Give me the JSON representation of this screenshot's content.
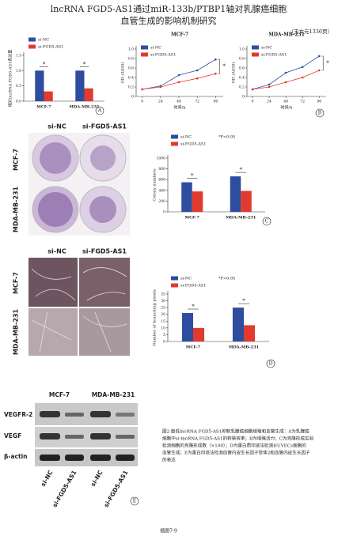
{
  "header": {
    "title_lines": [
      "lncRNA FGD5-AS1通过miR-133b/PTBP1轴对乳腺癌细胞",
      "血管生成的影响机制研究"
    ],
    "author_note": "（王文元1336页）"
  },
  "colony_photos": {
    "columns": [
      "si-NC",
      "si-FGD5-AS1"
    ],
    "rows": [
      "MCF-7",
      "MDA-MB-231"
    ]
  },
  "tube_photos": {
    "columns": [
      "si-NC",
      "si-FGD5-AS1"
    ],
    "rows": [
      "MCF-7",
      "MDA-MB-231"
    ]
  },
  "western_blot": {
    "label": "E",
    "groups": [
      "MCF-7",
      "MDA-MB-231"
    ],
    "bands": [
      "VEGFR-2",
      "VEGF",
      "β-actin"
    ],
    "lanes": [
      "si-NC",
      "si-FGD5-AS1",
      "si-NC",
      "si-FGD5-AS1"
    ]
  },
  "caption": {
    "lines": [
      "图2  敲低lncRNA FGD5-AS1抑制乳腺癌细胞增殖和血管生成：A为乳腺癌",
      "细胞中si-lncRNA FGD5-AS1的转染效率；B为增殖活力；C为克隆形成实验",
      "检测细胞的克隆形成数（×100）；D为蛋白质印迹法检测HUVECs细胞的",
      "血管生成；E为蛋白印迹法检测血管内皮生长因子受体2和血管内皮生长因子",
      "的表达"
    ]
  },
  "footer": "插图7-9",
  "chart_data": [
    {
      "type": "bar",
      "label": "A",
      "ylabel": "相对lncRNA FGD5-AS1表达量",
      "categories": [
        "MCF-7",
        "MDA-MB-231"
      ],
      "series": [
        {
          "name": "si-NC",
          "color": "#2e4d9e",
          "values": [
            1.0,
            1.0
          ]
        },
        {
          "name": "si-FGD5-AS1",
          "color": "#e23a2e",
          "values": [
            0.32,
            0.42
          ]
        }
      ],
      "annotations": [
        "*",
        "*"
      ],
      "ylim": [
        0,
        1.5
      ],
      "yticks": [
        {
          "value": 0,
          "label": "0.0"
        },
        0.5,
        {
          "value": 1,
          "label": "1.0"
        },
        {
          "value": 1.5,
          "label": "1.5"
        }
      ]
    },
    {
      "type": "line",
      "label": "",
      "title": "MCF-7",
      "xlabel": "时间/h",
      "ylabel": "OD (A450)",
      "x": [
        0,
        24,
        48,
        72,
        96
      ],
      "series": [
        {
          "name": "si-NC",
          "color": "#2e4d9e",
          "values": [
            0.15,
            0.22,
            0.45,
            0.55,
            0.78
          ]
        },
        {
          "name": "si-FGD5-AS1",
          "color": "#e23a2e",
          "values": [
            0.15,
            0.2,
            0.3,
            0.38,
            0.48
          ]
        }
      ],
      "annotations": [
        "*"
      ],
      "xlim": [
        -8,
        106
      ],
      "xticks": [
        0,
        24,
        48,
        72,
        96
      ],
      "ylim": [
        0,
        1
      ],
      "yticks": [
        0,
        0.2,
        0.4,
        0.6,
        0.8,
        {
          "value": 1,
          "label": "1.0"
        }
      ]
    },
    {
      "type": "line",
      "label": "B",
      "title": "MDA-MB-231",
      "xlabel": "时间/h",
      "ylabel": "OD (A450)",
      "x": [
        0,
        24,
        48,
        72,
        96
      ],
      "series": [
        {
          "name": "si-NC",
          "color": "#2e4d9e",
          "values": [
            0.15,
            0.25,
            0.5,
            0.62,
            0.85
          ]
        },
        {
          "name": "si-FGD5-AS1",
          "color": "#e23a2e",
          "values": [
            0.15,
            0.2,
            0.3,
            0.4,
            0.55
          ]
        }
      ],
      "annotations": [
        "*"
      ],
      "xlim": [
        -8,
        106
      ],
      "xticks": [
        0,
        24,
        48,
        72,
        96
      ],
      "ylim": [
        0,
        1
      ],
      "yticks": [
        0,
        0.2,
        0.4,
        0.6,
        0.8,
        {
          "value": 1,
          "label": "1.0"
        }
      ]
    },
    {
      "type": "bar",
      "label": "C",
      "ylabel": "Colony numbers",
      "note": "*P<0.05",
      "categories": [
        "MCF-7",
        "MDA-MB-231"
      ],
      "series": [
        {
          "name": "si-NC",
          "color": "#2e4d9e",
          "values": [
            550,
            660
          ]
        },
        {
          "name": "si-FGD5-AS1",
          "color": "#e23a2e",
          "values": [
            380,
            390
          ]
        }
      ],
      "annotations": [
        "*",
        "*"
      ],
      "ylim": [
        0,
        1000
      ],
      "yticks": [
        0,
        200,
        400,
        600,
        800,
        1000
      ]
    },
    {
      "type": "bar",
      "label": "D",
      "ylabel": "Number of branching points",
      "note": "*P<0.05",
      "categories": [
        "MCF-7",
        "MDA-MB-231"
      ],
      "series": [
        {
          "name": "si-NC",
          "color": "#2e4d9e",
          "values": [
            21,
            25
          ]
        },
        {
          "name": "si-FGD5-AS1",
          "color": "#e23a2e",
          "values": [
            10,
            12
          ]
        }
      ],
      "annotations": [
        "*",
        "*"
      ],
      "ylim": [
        0,
        35
      ],
      "yticks": [
        0,
        5,
        10,
        15,
        20,
        25,
        30,
        35
      ]
    }
  ]
}
